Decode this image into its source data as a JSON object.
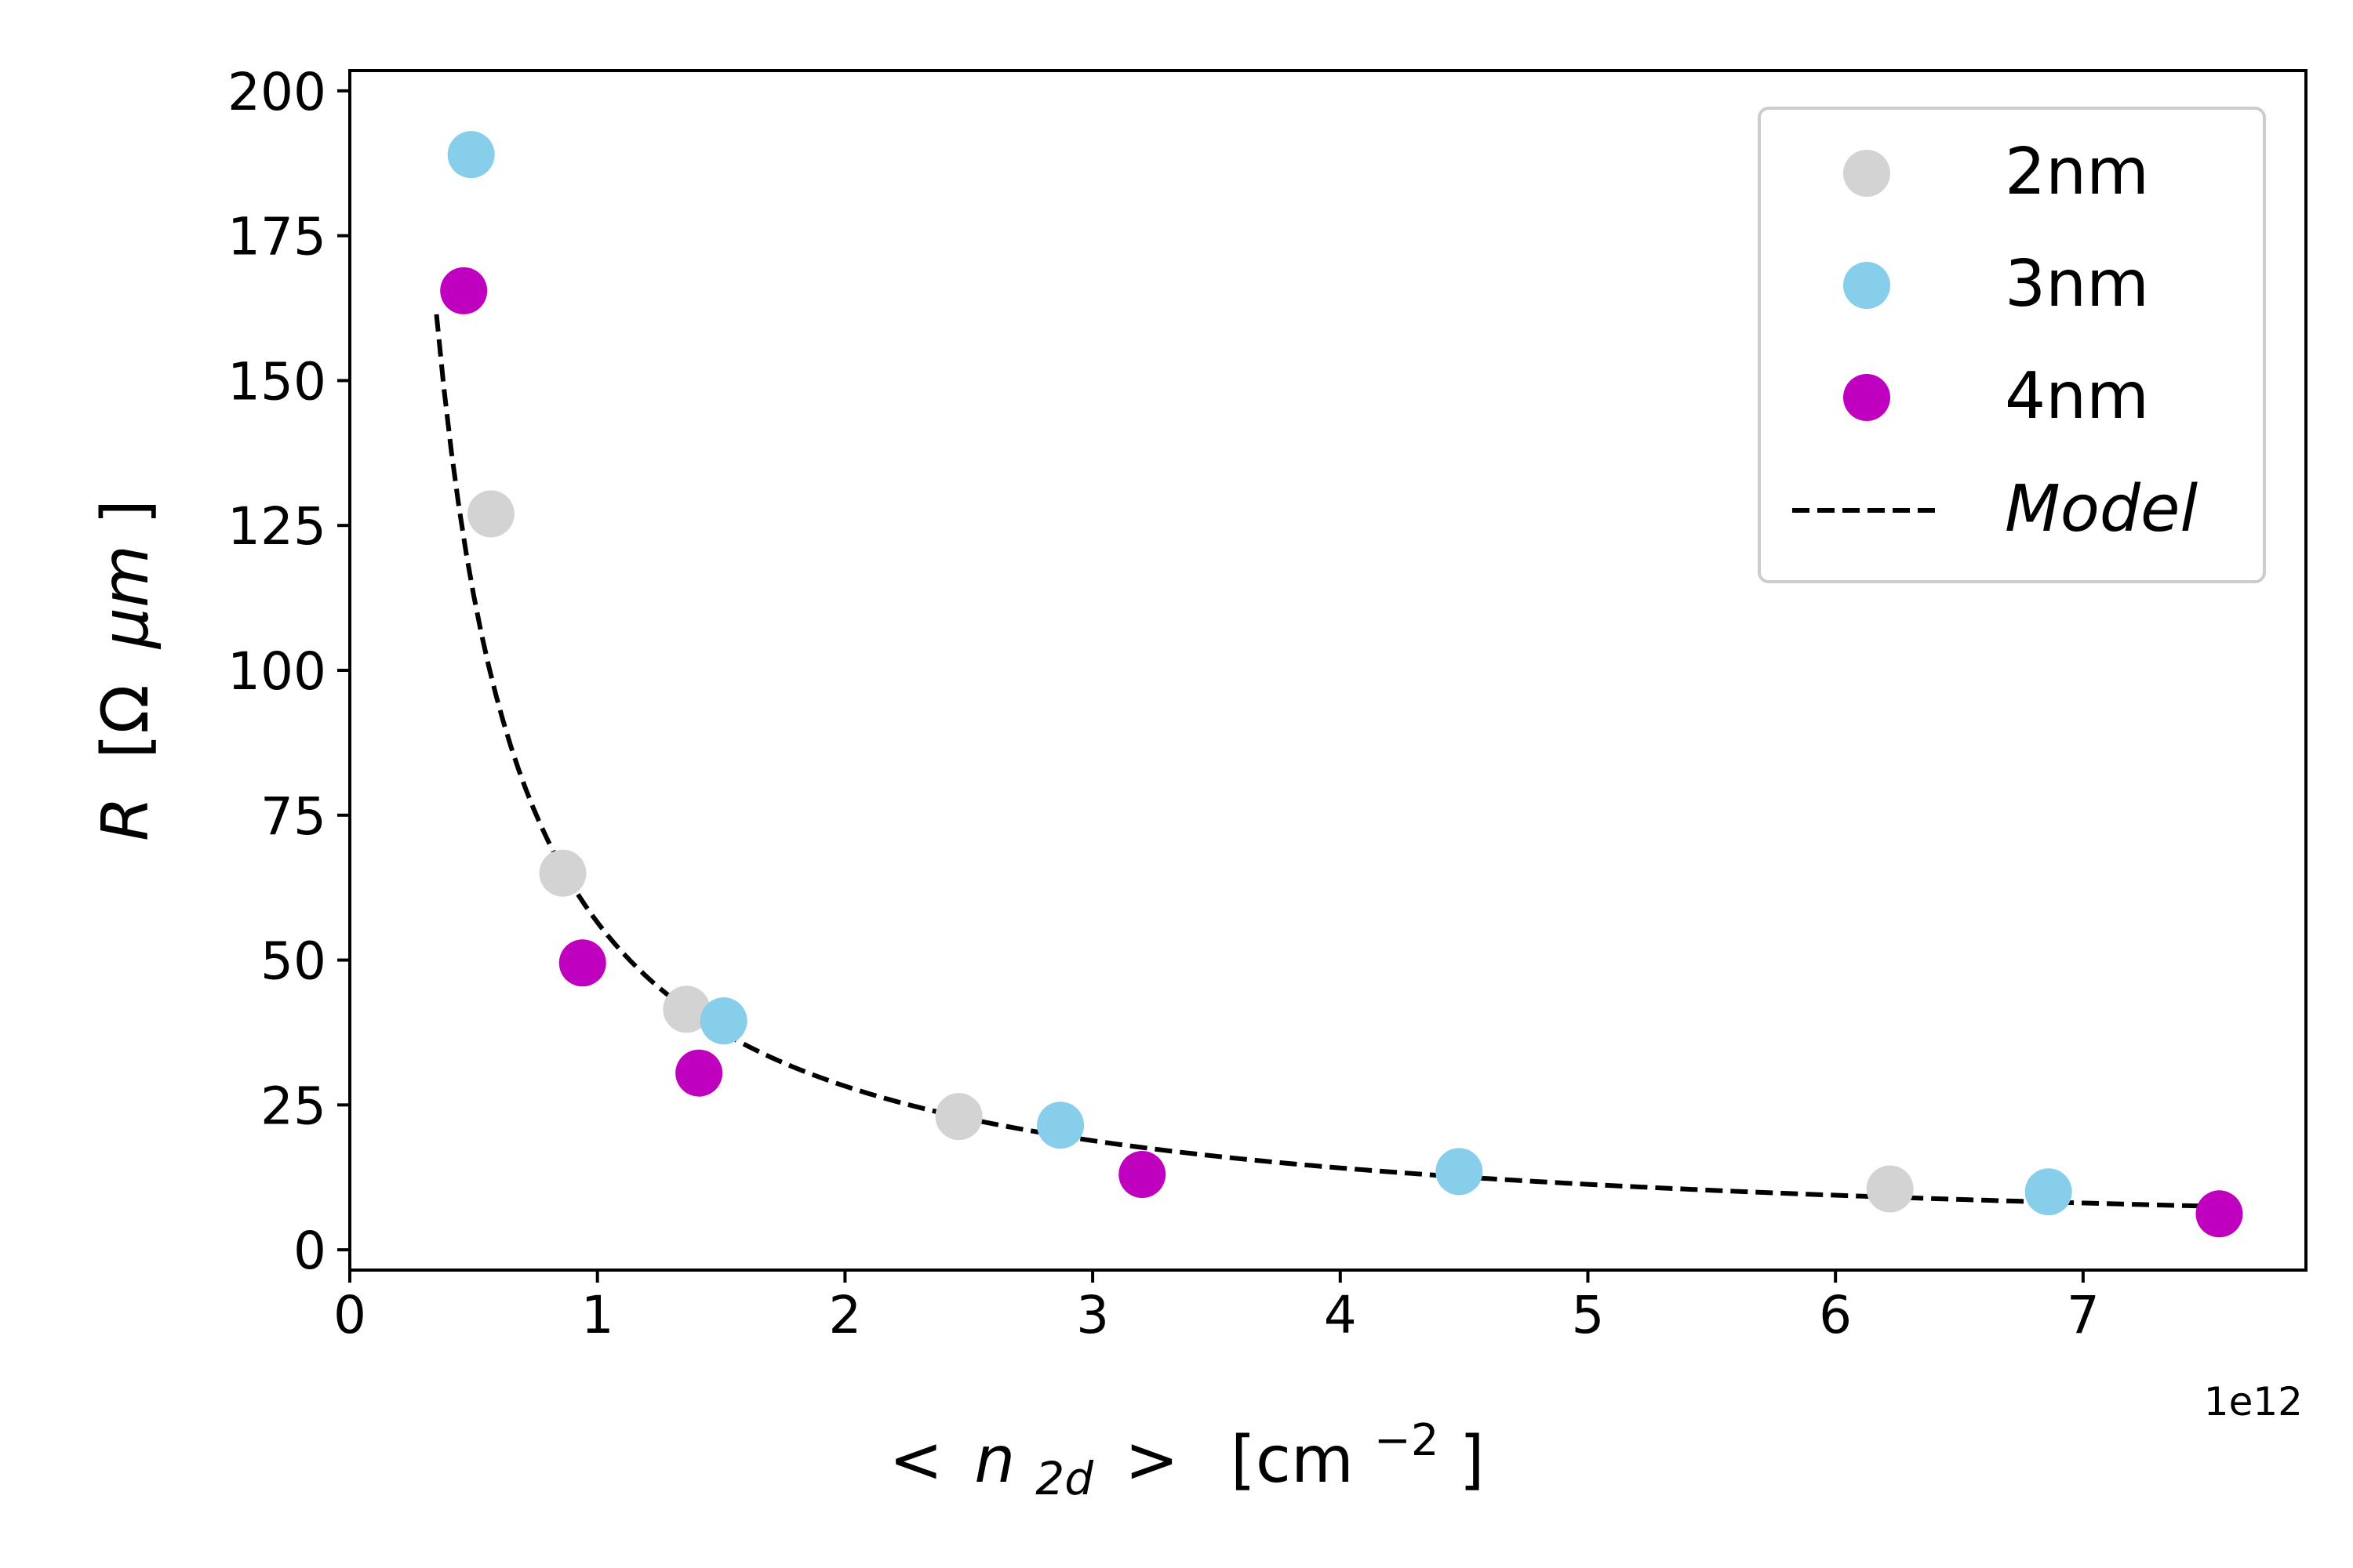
{
  "chart_data": {
    "type": "scatter",
    "title": "",
    "xlabel_parts": {
      "open": "<",
      "var": "n",
      "sub": "2d",
      "close": ">",
      "unit_base": "[cm",
      "unit_exp": "−2",
      "unit_end": "]"
    },
    "ylabel_parts": {
      "var": "R",
      "unit": "[Ω",
      "unit_var": "μm",
      "unit_end": "]"
    },
    "x_offset_label": "1e12",
    "x_multiplier": 1000000000000.0,
    "xlim": [
      0,
      7.9
    ],
    "ylim": [
      -3.5,
      203.5
    ],
    "xticks": [
      0,
      1,
      2,
      3,
      4,
      5,
      6,
      7
    ],
    "xtick_labels": [
      "0",
      "1",
      "2",
      "3",
      "4",
      "5",
      "6",
      "7"
    ],
    "yticks": [
      0,
      25,
      50,
      75,
      100,
      125,
      150,
      175,
      200
    ],
    "ytick_labels": [
      "0",
      "25",
      "50",
      "75",
      "100",
      "125",
      "150",
      "175",
      "200"
    ],
    "grid": false,
    "legend_position": "top-right",
    "series": [
      {
        "name": "2nm",
        "color": "#d3d3d3",
        "marker": "circle",
        "points": [
          [
            0.57,
            127
          ],
          [
            0.86,
            65
          ],
          [
            1.36,
            41.5
          ],
          [
            2.46,
            23
          ],
          [
            6.22,
            10.5
          ]
        ]
      },
      {
        "name": "3nm",
        "color": "#87ceeb",
        "marker": "circle",
        "points": [
          [
            0.49,
            189
          ],
          [
            1.51,
            39.5
          ],
          [
            2.87,
            21.5
          ],
          [
            4.48,
            13.5
          ],
          [
            6.86,
            10
          ]
        ]
      },
      {
        "name": "4nm",
        "color": "#bf00bf",
        "marker": "circle",
        "points": [
          [
            0.46,
            165.5
          ],
          [
            0.94,
            49.5
          ],
          [
            1.41,
            30.5
          ],
          [
            3.2,
            13
          ],
          [
            7.55,
            6.2
          ]
        ]
      }
    ],
    "model": {
      "name": "Model",
      "color": "#000000",
      "style": "dashed",
      "equation": "R = 56.5 / x",
      "x_range": [
        0.35,
        7.55
      ]
    }
  }
}
